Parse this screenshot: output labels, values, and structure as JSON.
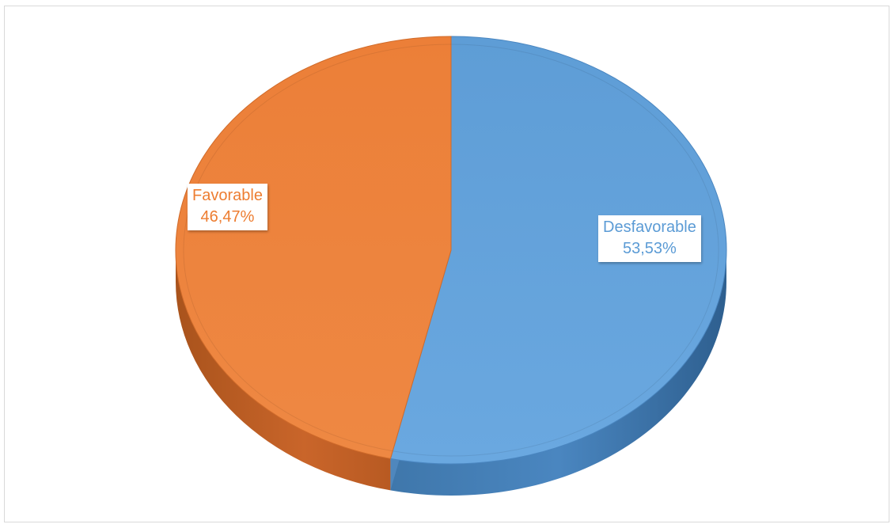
{
  "chart_data": {
    "type": "pie",
    "variant": "3d",
    "categories": [
      "Desfavorable",
      "Favorable"
    ],
    "values": [
      53.53,
      46.47
    ],
    "labels": [
      {
        "category": "Desfavorable",
        "percent": "53,53%"
      },
      {
        "category": "Favorable",
        "percent": "46,47%"
      }
    ],
    "colors": [
      "#5b9bd5",
      "#ed7d31"
    ],
    "legend": "none"
  }
}
